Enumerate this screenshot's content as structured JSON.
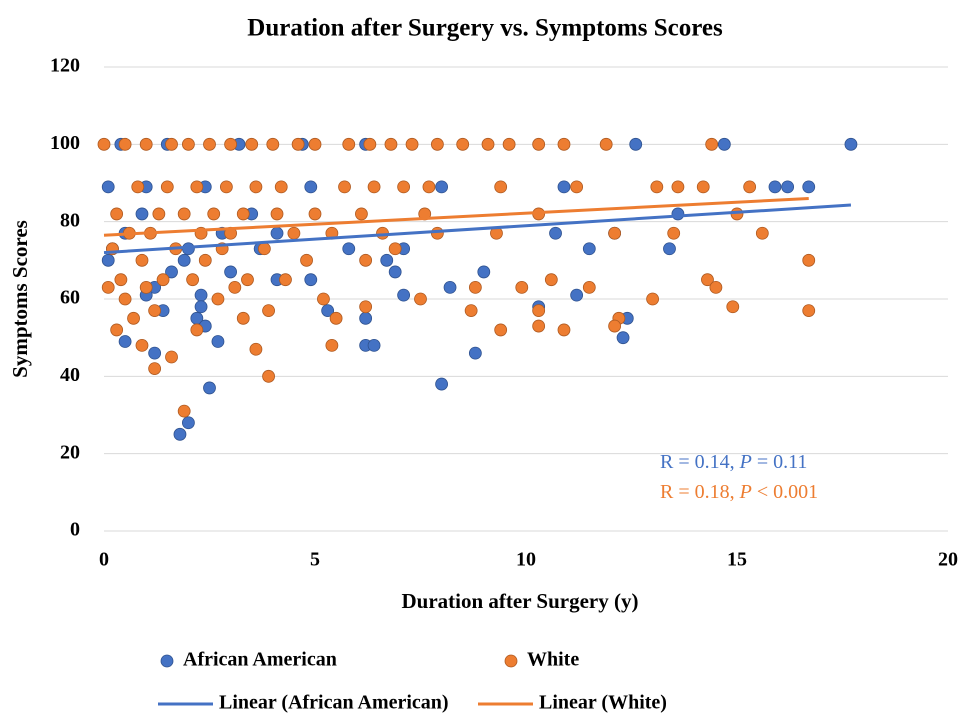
{
  "chart_data": {
    "type": "scatter",
    "title": "Duration after Surgery vs. Symptoms Scores",
    "x_label": "Duration after Surgery (y)",
    "y_label": "Symptoms Scores",
    "xlim": [
      0,
      20
    ],
    "xticks": [
      0,
      5,
      10,
      15,
      20
    ],
    "ylim": [
      0,
      120
    ],
    "yticks": [
      0,
      20,
      40,
      60,
      80,
      100,
      120
    ],
    "grid": true,
    "legend": "bottom",
    "series": [
      {
        "name": "African American",
        "type": "scatter",
        "color": "#4472c4",
        "x": [
          0.4,
          1.5,
          3.2,
          4.7,
          6.2,
          12.6,
          14.7,
          17.7,
          0.1,
          1.0,
          2.4,
          4.9,
          8.0,
          10.9,
          15.9,
          16.2,
          16.7,
          0.9,
          3.5,
          13.6,
          0.5,
          2.8,
          4.1,
          10.7,
          12.1,
          0.2,
          2.0,
          3.7,
          5.8,
          7.1,
          11.5,
          13.4,
          0.1,
          1.9,
          6.7,
          1.6,
          3.0,
          6.9,
          9.0,
          4.1,
          4.9,
          1.2,
          8.2,
          1.0,
          2.3,
          7.1,
          11.2,
          2.3,
          10.3,
          1.4,
          5.3,
          2.2,
          6.2,
          12.4,
          2.4,
          12.3,
          0.5,
          2.7,
          6.2,
          6.4,
          1.2,
          8.8,
          8.0,
          2.5,
          2.0,
          1.8
        ],
        "values": [
          100,
          100,
          100,
          100,
          100,
          100,
          100,
          100,
          89,
          89,
          89,
          89,
          89,
          89,
          89,
          89,
          89,
          82,
          82,
          82,
          77,
          77,
          77,
          77,
          77,
          73,
          73,
          73,
          73,
          73,
          73,
          73,
          70,
          70,
          70,
          67,
          67,
          67,
          67,
          65,
          65,
          63,
          63,
          61,
          61,
          61,
          61,
          58,
          58,
          57,
          57,
          55,
          55,
          55,
          53,
          50,
          49,
          49,
          48,
          48,
          46,
          46,
          38,
          37,
          28,
          25
        ]
      },
      {
        "name": "White",
        "type": "scatter",
        "color": "#ed7d31",
        "x": [
          0,
          0.5,
          1.0,
          1.6,
          2.0,
          2.5,
          3.0,
          3.5,
          4.0,
          4.6,
          5.0,
          5.8,
          6.3,
          6.8,
          7.3,
          7.9,
          8.5,
          9.1,
          9.6,
          10.3,
          10.9,
          11.9,
          14.4,
          0.8,
          1.5,
          2.2,
          2.9,
          3.6,
          4.2,
          5.7,
          6.4,
          7.1,
          7.7,
          9.4,
          11.2,
          13.1,
          13.6,
          14.2,
          15.3,
          0.3,
          1.3,
          1.9,
          2.6,
          3.3,
          4.1,
          5.0,
          6.1,
          7.6,
          10.3,
          15.0,
          0.6,
          1.1,
          2.3,
          3.0,
          4.5,
          5.4,
          6.6,
          7.9,
          9.3,
          12.1,
          13.5,
          15.6,
          0.2,
          1.7,
          2.8,
          3.8,
          6.9,
          0.9,
          2.4,
          4.8,
          6.2,
          16.7,
          0.4,
          1.4,
          2.1,
          3.4,
          4.3,
          10.6,
          14.3,
          0.1,
          1.0,
          3.1,
          8.8,
          9.9,
          11.5,
          14.5,
          0.5,
          2.7,
          5.2,
          7.5,
          13.0,
          14.9,
          6.2,
          1.2,
          3.9,
          8.7,
          10.3,
          16.7,
          0.7,
          3.3,
          5.5,
          12.2,
          12.1,
          10.3,
          0.3,
          2.2,
          9.4,
          10.9,
          0.9,
          5.4,
          3.6,
          1.6,
          1.2,
          3.9,
          1.9
        ],
        "values": [
          100,
          100,
          100,
          100,
          100,
          100,
          100,
          100,
          100,
          100,
          100,
          100,
          100,
          100,
          100,
          100,
          100,
          100,
          100,
          100,
          100,
          100,
          100,
          89,
          89,
          89,
          89,
          89,
          89,
          89,
          89,
          89,
          89,
          89,
          89,
          89,
          89,
          89,
          89,
          82,
          82,
          82,
          82,
          82,
          82,
          82,
          82,
          82,
          82,
          82,
          77,
          77,
          77,
          77,
          77,
          77,
          77,
          77,
          77,
          77,
          77,
          77,
          73,
          73,
          73,
          73,
          73,
          70,
          70,
          70,
          70,
          70,
          65,
          65,
          65,
          65,
          65,
          65,
          65,
          63,
          63,
          63,
          63,
          63,
          63,
          63,
          60,
          60,
          60,
          60,
          60,
          58,
          58,
          57,
          57,
          57,
          57,
          57,
          55,
          55,
          55,
          55,
          53,
          53,
          52,
          52,
          52,
          52,
          48,
          48,
          47,
          45,
          42,
          40,
          31
        ]
      },
      {
        "name": "Linear (African American)",
        "type": "line",
        "color": "#4472c4",
        "x": [
          0,
          17.7
        ],
        "values": [
          72,
          84.3
        ]
      },
      {
        "name": "Linear (White)",
        "type": "line",
        "color": "#ed7d31",
        "x": [
          0,
          16.7
        ],
        "values": [
          76.5,
          86
        ]
      }
    ],
    "annotations": [
      {
        "text": [
          "R = 0.14, ",
          "P",
          " = 0.11"
        ],
        "color": "#4472c4"
      },
      {
        "text": [
          "R = 0.18, ",
          "P",
          " < 0.001"
        ],
        "color": "#ed7d31"
      }
    ]
  }
}
